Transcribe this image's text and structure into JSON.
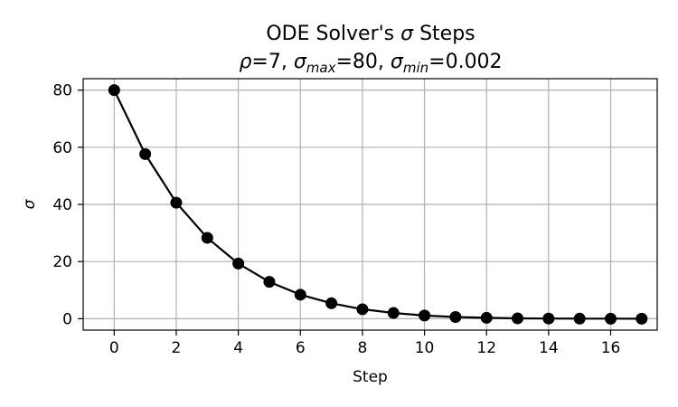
{
  "chart_data": {
    "type": "line",
    "title": {
      "line1_prefix": "ODE Solver's ",
      "line1_symbol": "σ",
      "line1_suffix": " Steps",
      "line2": {
        "rho_symbol": "ρ",
        "rho_value": "=7, ",
        "sigma_symbol": "σ",
        "max_sub": "max",
        "max_value": "=80, ",
        "min_sub": "min",
        "min_value": "=0.002"
      }
    },
    "xlabel": "Step",
    "ylabel": "σ",
    "xlim": [
      -1,
      17.5
    ],
    "ylim": [
      -4,
      84
    ],
    "xticks": [
      0,
      2,
      4,
      6,
      8,
      10,
      12,
      14,
      16
    ],
    "yticks": [
      0,
      20,
      40,
      60,
      80
    ],
    "grid": true,
    "x": [
      0,
      1,
      2,
      3,
      4,
      5,
      6,
      7,
      8,
      9,
      10,
      11,
      12,
      13,
      14,
      15,
      16,
      17
    ],
    "y": [
      80,
      57.6,
      40.6,
      28.3,
      19.3,
      12.9,
      8.4,
      5.4,
      3.3,
      2.0,
      1.1,
      0.6,
      0.3,
      0.1,
      0.05,
      0.02,
      0.005,
      0.002
    ],
    "color": "#000000"
  }
}
